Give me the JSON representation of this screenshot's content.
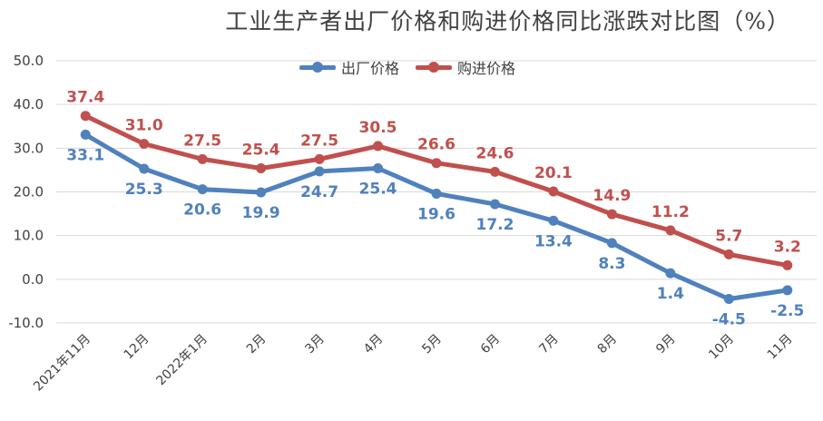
{
  "chart_data": {
    "type": "line",
    "title": "工业生产者出厂价格和购进价格同比涨跌对比图（%）",
    "xlabel": "",
    "ylabel": "",
    "categories": [
      "2021年11月",
      "12月",
      "2022年1月",
      "2月",
      "3月",
      "4月",
      "5月",
      "6月",
      "7月",
      "8月",
      "9月",
      "10月",
      "11月"
    ],
    "ylim": [
      -10,
      50
    ],
    "yticks": [
      "-10.0",
      "0.0",
      "10.0",
      "20.0",
      "30.0",
      "40.0",
      "50.0"
    ],
    "grid": true,
    "legend_position": "top",
    "series": [
      {
        "name": "出厂价格",
        "color": "#4F81BD",
        "values": [
          33.1,
          25.3,
          20.6,
          19.9,
          24.7,
          25.4,
          19.6,
          17.2,
          13.4,
          8.3,
          1.4,
          -4.5,
          -2.5
        ],
        "labels": [
          "33.1",
          "25.3",
          "20.6",
          "19.9",
          "24.7",
          "25.4",
          "19.6",
          "17.2",
          "13.4",
          "8.3",
          "1.4",
          "-4.5",
          "-2.5"
        ]
      },
      {
        "name": "购进价格",
        "color": "#C0504D",
        "values": [
          37.4,
          31.0,
          27.5,
          25.4,
          27.5,
          30.5,
          26.6,
          24.6,
          20.1,
          14.9,
          11.2,
          5.7,
          3.2
        ],
        "labels": [
          "37.4",
          "31.0",
          "27.5",
          "25.4",
          "27.5",
          "30.5",
          "26.6",
          "24.6",
          "20.1",
          "14.9",
          "11.2",
          "5.7",
          "3.2"
        ]
      }
    ]
  }
}
